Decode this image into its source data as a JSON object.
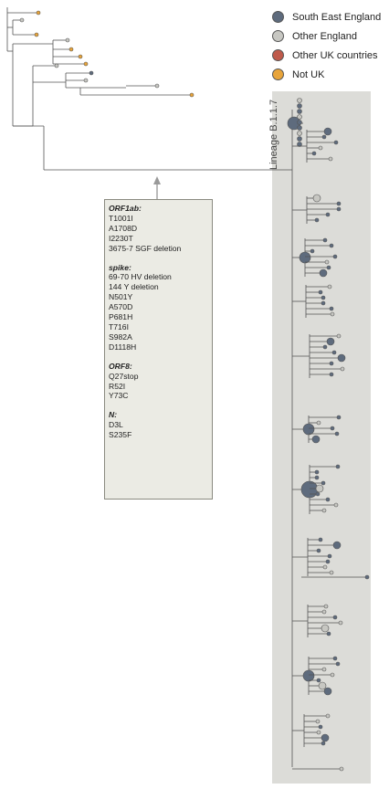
{
  "legend": {
    "items": [
      {
        "label": "South East England",
        "color": "#5e6b7d"
      },
      {
        "label": "Other England",
        "color": "#c7c7c2"
      },
      {
        "label": "Other UK countries",
        "color": "#bf5a4b"
      },
      {
        "label": "Not UK",
        "color": "#e8a43a"
      }
    ]
  },
  "lineage": {
    "label": "Lineage B.1.1.7",
    "shade_color": "#dcdcd8"
  },
  "mutations": {
    "groups": [
      {
        "gene": "ORF1ab:",
        "items": [
          "T1001I",
          "A1708D",
          "I2230T",
          "3675-7 SGF deletion"
        ]
      },
      {
        "gene": "spike:",
        "items": [
          "69-70 HV deletion",
          "144 Y deletion",
          "N501Y",
          "A570D",
          "P681H",
          "T716I",
          "S982A",
          "D1118H"
        ]
      },
      {
        "gene": "ORF8:",
        "items": [
          "Q27stop",
          "R52I",
          "Y73C"
        ]
      },
      {
        "gene": "N:",
        "items": [
          "D3L",
          "S235F"
        ]
      }
    ]
  }
}
